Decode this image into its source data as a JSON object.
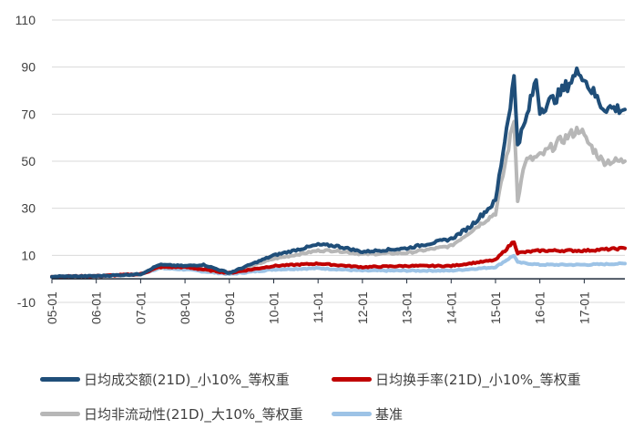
{
  "chart_data": {
    "type": "line",
    "x_ticks": [
      "05-01",
      "06-01",
      "07-01",
      "08-01",
      "09-01",
      "10-01",
      "11-01",
      "12-01",
      "13-01",
      "14-01",
      "15-01",
      "16-01",
      "17-01"
    ],
    "y_ticks": [
      110,
      90,
      70,
      50,
      30,
      10,
      -10
    ],
    "ylim": [
      -10,
      110
    ],
    "xlim": [
      "05-01",
      "17-12"
    ],
    "grid": "horizontal",
    "legend_position": "bottom",
    "series": [
      {
        "name": "日均成交额(21D)_小10%_等权重",
        "color": "#1f4e79",
        "x": [
          "05-01",
          "06-01",
          "07-01",
          "07-06",
          "08-01",
          "08-06",
          "09-01",
          "10-01",
          "11-01",
          "11-06",
          "12-01",
          "13-01",
          "14-01",
          "14-06",
          "15-01",
          "15-06",
          "15-07",
          "15-09",
          "15-12",
          "16-01",
          "16-06",
          "16-12",
          "17-01",
          "17-06",
          "17-12"
        ],
        "values": [
          1,
          1.2,
          2,
          6,
          5.5,
          6,
          2.5,
          10,
          14.5,
          14,
          11.5,
          13,
          17,
          22,
          33,
          85,
          58,
          66,
          85,
          72,
          78,
          89,
          85,
          73,
          72
        ]
      },
      {
        "name": "日均换手率(21D)_小10%_等权重",
        "color": "#c00000",
        "x": [
          "05-01",
          "06-01",
          "07-01",
          "07-06",
          "08-01",
          "09-01",
          "10-01",
          "11-01",
          "12-01",
          "13-01",
          "14-01",
          "15-01",
          "15-06",
          "15-07",
          "16-01",
          "17-01",
          "17-12"
        ],
        "values": [
          1,
          1.2,
          2,
          5,
          5,
          2.5,
          5.5,
          6.5,
          5,
          5.5,
          5.5,
          8,
          16,
          11,
          12,
          12,
          13
        ]
      },
      {
        "name": "日均非流动性(21D)_大10%_等权重",
        "color": "#b7b7b7",
        "x": [
          "05-01",
          "06-01",
          "07-01",
          "07-06",
          "08-01",
          "09-01",
          "10-01",
          "11-01",
          "11-06",
          "12-01",
          "13-01",
          "14-01",
          "15-01",
          "15-06",
          "15-07",
          "15-09",
          "16-01",
          "16-06",
          "16-12",
          "17-01",
          "17-06",
          "17-12"
        ],
        "values": [
          1,
          1.2,
          2,
          5,
          5,
          2.5,
          8.5,
          12,
          12,
          10.5,
          11,
          14,
          28,
          68,
          34,
          50,
          52,
          58,
          64,
          60,
          50,
          50
        ]
      },
      {
        "name": "基准",
        "color": "#9dc3e6",
        "x": [
          "05-01",
          "06-01",
          "07-01",
          "07-06",
          "08-01",
          "09-01",
          "10-01",
          "11-01",
          "12-01",
          "13-01",
          "14-01",
          "15-01",
          "15-06",
          "15-07",
          "16-01",
          "17-01",
          "17-12"
        ],
        "values": [
          1,
          1.2,
          2,
          4.5,
          4,
          2,
          4,
          4.5,
          3.5,
          3.5,
          3.5,
          5,
          10,
          7,
          6,
          6,
          6.5
        ]
      }
    ]
  },
  "legend": {
    "item1": "日均成交额(21D)_小10%_等权重",
    "item2": "日均换手率(21D)_小10%_等权重",
    "item3": "日均非流动性(21D)_大10%_等权重",
    "item4": "基准"
  }
}
